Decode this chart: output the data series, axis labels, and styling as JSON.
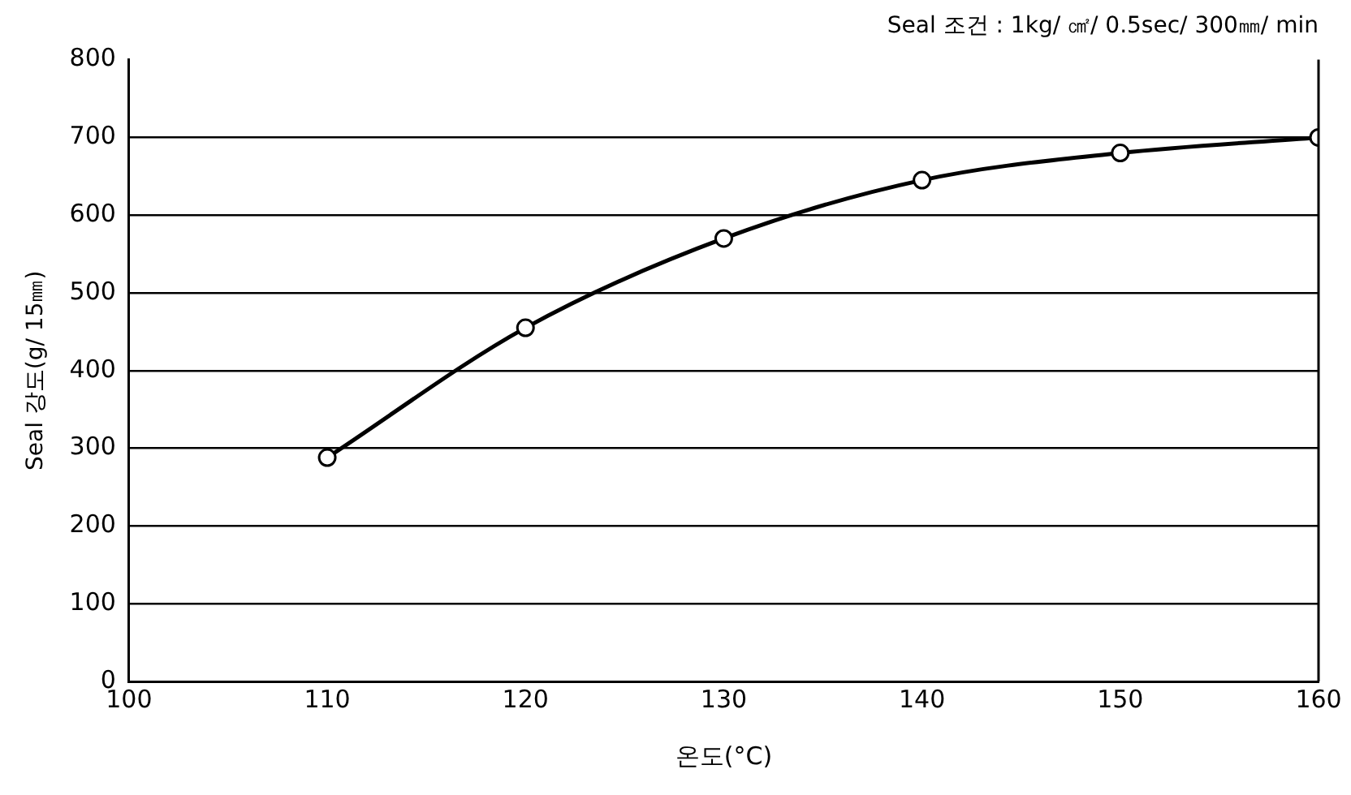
{
  "chart_data": {
    "type": "line",
    "subtitle": "Seal 조건 : 1kg/ ㎠/ 0.5sec/ 300㎜/ min",
    "xlabel": "온도(°C)",
    "ylabel": "Seal 강도(g/ 15㎜)",
    "x": [
      110,
      120,
      130,
      140,
      150,
      160
    ],
    "series": [
      {
        "color": "#000000",
        "values": [
          288,
          455,
          570,
          645,
          680,
          700
        ]
      }
    ],
    "xlim": [
      100,
      160
    ],
    "xticks": [
      100,
      110,
      120,
      130,
      140,
      150,
      160
    ],
    "ylim": [
      0,
      800
    ],
    "yticks": [
      0,
      100,
      200,
      300,
      400,
      500,
      600,
      700,
      800
    ],
    "grid": "y",
    "marker": "circle",
    "line_style": "solid"
  }
}
